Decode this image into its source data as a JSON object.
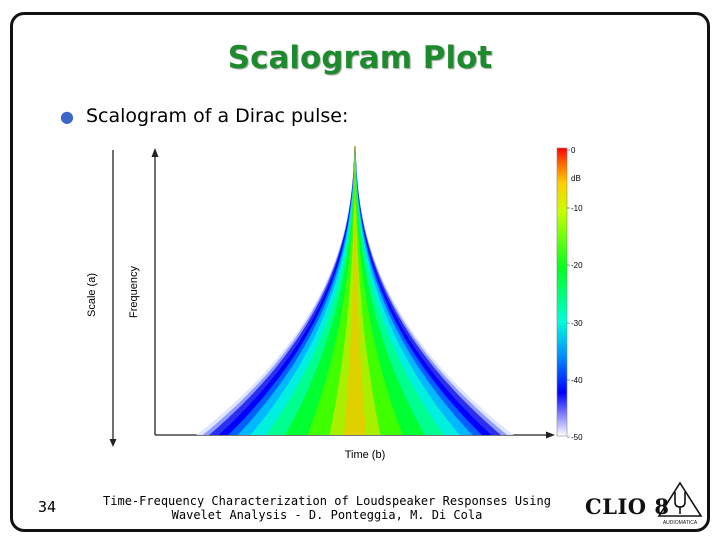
{
  "slide": {
    "title": "Scalogram Plot",
    "bullet": "Scalogram of a Dirac pulse:",
    "page_number": "34",
    "credit_line1": "Time-Frequency Characterization of Loudspeaker Responses Using",
    "credit_line2": "Wavelet Analysis - D. Ponteggia, M. Di Cola",
    "logo_text": "CLIO 8",
    "logo_subtext": "AUDIOMATICA"
  },
  "figure": {
    "scale_axis_label": "Scale (a)",
    "frequency_axis_label": "Frequency",
    "time_axis_label": "Time (b)",
    "colorbar_unit": "dB",
    "colorbar_ticks": [
      "0",
      "-10",
      "-20",
      "-30",
      "-40",
      "-50"
    ],
    "colorbar_colors": [
      "#ff0000",
      "#ffa000",
      "#ffff00",
      "#00ff00",
      "#00ffe0",
      "#0000ff",
      "#ffffff"
    ]
  }
}
